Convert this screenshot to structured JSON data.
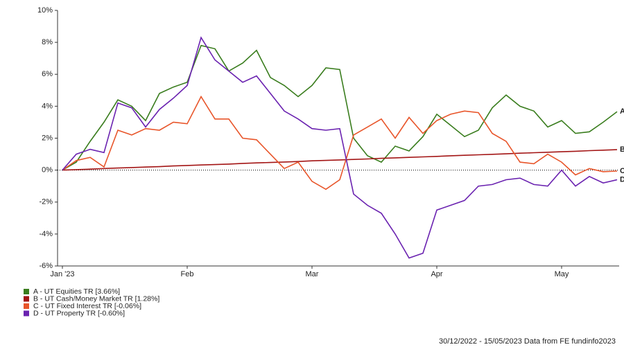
{
  "chart_data": {
    "type": "line",
    "categories": [
      "Jan '23",
      null,
      null,
      null,
      null,
      null,
      null,
      null,
      null,
      "Feb",
      null,
      null,
      null,
      null,
      null,
      null,
      null,
      null,
      "Mar",
      null,
      null,
      null,
      null,
      null,
      null,
      null,
      null,
      "Apr",
      null,
      null,
      null,
      null,
      null,
      null,
      null,
      null,
      "May",
      null,
      null,
      null,
      null
    ],
    "series": [
      {
        "name": "A - UT Equities TR [3.66%]",
        "tag": "A",
        "color": "#3a7d1e",
        "values": [
          0,
          0.5,
          1.8,
          3.0,
          4.4,
          4.0,
          3.1,
          4.8,
          5.2,
          5.5,
          7.8,
          7.6,
          6.2,
          6.7,
          7.5,
          5.8,
          5.3,
          4.6,
          5.3,
          6.4,
          6.3,
          2.0,
          0.9,
          0.5,
          1.5,
          1.2,
          2.1,
          3.5,
          2.8,
          2.1,
          2.5,
          3.9,
          4.7,
          4.0,
          3.7,
          2.7,
          3.1,
          2.3,
          2.4,
          3.0,
          3.66
        ]
      },
      {
        "name": "B - UT Cash/Money Market TR [1.28%]",
        "tag": "B",
        "color": "#a31515",
        "values": [
          0,
          0.03,
          0.06,
          0.1,
          0.13,
          0.16,
          0.19,
          0.22,
          0.26,
          0.29,
          0.32,
          0.35,
          0.38,
          0.42,
          0.45,
          0.48,
          0.51,
          0.54,
          0.58,
          0.61,
          0.64,
          0.67,
          0.7,
          0.74,
          0.77,
          0.8,
          0.83,
          0.86,
          0.9,
          0.93,
          0.96,
          0.99,
          1.02,
          1.06,
          1.09,
          1.12,
          1.15,
          1.18,
          1.22,
          1.25,
          1.28
        ]
      },
      {
        "name": "C - UT Fixed Interest TR [-0.06%]",
        "tag": "C",
        "color": "#e8552a",
        "values": [
          0,
          0.6,
          0.8,
          0.2,
          2.5,
          2.2,
          2.6,
          2.5,
          3.0,
          2.9,
          4.6,
          3.2,
          3.2,
          2.0,
          1.9,
          1.0,
          0.1,
          0.5,
          -0.7,
          -1.2,
          -0.6,
          2.2,
          2.7,
          3.2,
          2.0,
          3.3,
          2.3,
          3.1,
          3.5,
          3.7,
          3.6,
          2.3,
          1.8,
          0.5,
          0.4,
          1.0,
          0.5,
          -0.3,
          0.1,
          -0.1,
          -0.06
        ]
      },
      {
        "name": "D - UT Property TR [-0.60%]",
        "tag": "D",
        "color": "#6a22b0",
        "values": [
          0,
          1.0,
          1.3,
          1.1,
          4.2,
          3.9,
          2.7,
          3.8,
          4.5,
          5.3,
          8.3,
          6.9,
          6.2,
          5.5,
          5.9,
          4.8,
          3.7,
          3.2,
          2.6,
          2.5,
          2.6,
          -1.5,
          -2.2,
          -2.7,
          -4.0,
          -5.5,
          -5.2,
          -2.5,
          -2.2,
          -1.9,
          -1.0,
          -0.9,
          -0.6,
          -0.5,
          -0.9,
          -1.0,
          0.0,
          -1.0,
          -0.4,
          -0.8,
          -0.6
        ]
      }
    ],
    "ylim": [
      -6,
      10
    ],
    "yticks": [
      {
        "value": -6,
        "label": "-6%"
      },
      {
        "value": -4,
        "label": "-4%"
      },
      {
        "value": -2,
        "label": "-2%"
      },
      {
        "value": 0,
        "label": "0%"
      },
      {
        "value": 2,
        "label": "2%"
      },
      {
        "value": 4,
        "label": "4%"
      },
      {
        "value": 6,
        "label": "6%"
      },
      {
        "value": 8,
        "label": "8%"
      },
      {
        "value": 10,
        "label": "10%"
      }
    ],
    "footer": "30/12/2022 - 15/05/2023 Data from FE fundinfo2023"
  }
}
